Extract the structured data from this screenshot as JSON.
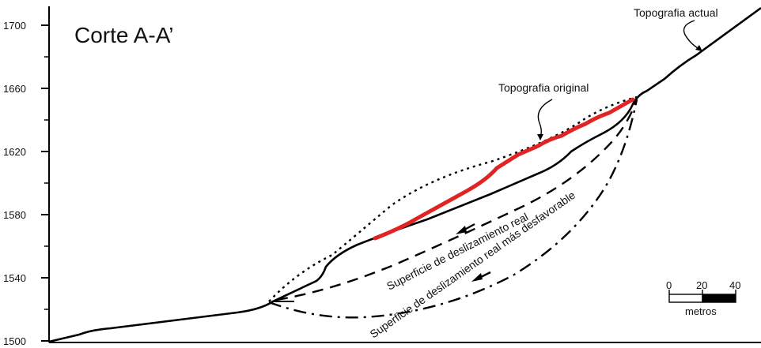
{
  "title": "Corte A-A’",
  "y_axis": {
    "ticks": [
      "1700",
      "1660",
      "1620",
      "1580",
      "1540",
      "1500"
    ]
  },
  "labels": {
    "topografia_actual": "Topografia actual",
    "topografia_original": "Topografia original",
    "superficie_real": "Superficie de deslizamiento real",
    "superficie_desfavorable": "Superficie de deslizamiento real más desfavorable"
  },
  "scale_bar": {
    "ticks": [
      "0",
      "20",
      "40"
    ],
    "unit": "metros"
  },
  "colors": {
    "line": "#000000",
    "original_topography": "#e02424"
  }
}
